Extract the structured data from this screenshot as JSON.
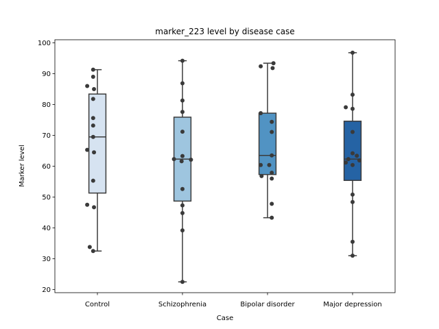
{
  "chart_data": {
    "type": "box",
    "title": "marker_223 level by disease case",
    "xlabel": "Case",
    "ylabel": "Marker level",
    "ylim": [
      19,
      101
    ],
    "yticks": [
      20,
      30,
      40,
      50,
      60,
      70,
      80,
      90,
      100
    ],
    "grid": false,
    "categories": [
      "Control",
      "Schizophrenia",
      "Bipolar disorder",
      "Major depression"
    ],
    "boxes": [
      {
        "q1": 51.3,
        "median": 69.5,
        "q3": 83.4,
        "whisker_low": 32.5,
        "whisker_high": 91.3,
        "color": "#d6e3f1"
      },
      {
        "q1": 48.7,
        "median": 62.3,
        "q3": 75.9,
        "whisker_low": 22.5,
        "whisker_high": 94.2,
        "color": "#9ec5df"
      },
      {
        "q1": 57.3,
        "median": 63.5,
        "q3": 77.2,
        "whisker_low": 43.3,
        "whisker_high": 93.4,
        "color": "#5193c3"
      },
      {
        "q1": 55.4,
        "median": 62.3,
        "q3": 74.6,
        "whisker_low": 31.0,
        "whisker_high": 96.8,
        "color": "#2563a4"
      }
    ],
    "points": [
      [
        {
          "y": 91.3,
          "dx": -0.05
        },
        {
          "y": 89.0,
          "dx": -0.05
        },
        {
          "y": 86.0,
          "dx": -0.12
        },
        {
          "y": 85.0,
          "dx": -0.04
        },
        {
          "y": 81.8,
          "dx": -0.05
        },
        {
          "y": 75.6,
          "dx": -0.05
        },
        {
          "y": 73.2,
          "dx": -0.05
        },
        {
          "y": 69.5,
          "dx": -0.05
        },
        {
          "y": 65.3,
          "dx": -0.12
        },
        {
          "y": 64.5,
          "dx": -0.04
        },
        {
          "y": 55.3,
          "dx": -0.05
        },
        {
          "y": 47.5,
          "dx": -0.12
        },
        {
          "y": 46.7,
          "dx": -0.04
        },
        {
          "y": 33.8,
          "dx": -0.09
        },
        {
          "y": 32.5,
          "dx": -0.05
        }
      ],
      [
        {
          "y": 94.2,
          "dx": 0.0
        },
        {
          "y": 86.9,
          "dx": 0.0
        },
        {
          "y": 81.3,
          "dx": 0.0
        },
        {
          "y": 77.6,
          "dx": 0.0
        },
        {
          "y": 71.2,
          "dx": 0.0
        },
        {
          "y": 63.3,
          "dx": 0.0
        },
        {
          "y": 62.3,
          "dx": -0.1
        },
        {
          "y": 62.1,
          "dx": 0.1
        },
        {
          "y": 61.6,
          "dx": -0.01
        },
        {
          "y": 52.6,
          "dx": 0.0
        },
        {
          "y": 47.3,
          "dx": 0.0
        },
        {
          "y": 44.8,
          "dx": 0.0
        },
        {
          "y": 39.2,
          "dx": 0.0
        },
        {
          "y": 22.5,
          "dx": 0.0
        }
      ],
      [
        {
          "y": 93.4,
          "dx": 0.07
        },
        {
          "y": 92.4,
          "dx": -0.08
        },
        {
          "y": 91.8,
          "dx": 0.06
        },
        {
          "y": 77.2,
          "dx": -0.08
        },
        {
          "y": 74.4,
          "dx": 0.05
        },
        {
          "y": 71.1,
          "dx": 0.05
        },
        {
          "y": 63.5,
          "dx": 0.05
        },
        {
          "y": 60.4,
          "dx": -0.08
        },
        {
          "y": 60.4,
          "dx": 0.02
        },
        {
          "y": 57.9,
          "dx": 0.05
        },
        {
          "y": 56.8,
          "dx": -0.07
        },
        {
          "y": 56.0,
          "dx": 0.05
        },
        {
          "y": 47.8,
          "dx": 0.05
        },
        {
          "y": 43.3,
          "dx": 0.05
        }
      ],
      [
        {
          "y": 96.8,
          "dx": 0.0
        },
        {
          "y": 83.2,
          "dx": 0.0
        },
        {
          "y": 79.1,
          "dx": -0.08
        },
        {
          "y": 78.6,
          "dx": 0.0
        },
        {
          "y": 71.1,
          "dx": 0.0
        },
        {
          "y": 64.2,
          "dx": 0.0
        },
        {
          "y": 63.4,
          "dx": 0.05
        },
        {
          "y": 62.3,
          "dx": -0.05
        },
        {
          "y": 61.9,
          "dx": 0.08
        },
        {
          "y": 61.2,
          "dx": -0.08
        },
        {
          "y": 60.4,
          "dx": 0.0
        },
        {
          "y": 50.8,
          "dx": 0.0
        },
        {
          "y": 48.4,
          "dx": 0.0
        },
        {
          "y": 35.5,
          "dx": 0.0
        },
        {
          "y": 31.0,
          "dx": 0.0
        }
      ]
    ]
  }
}
